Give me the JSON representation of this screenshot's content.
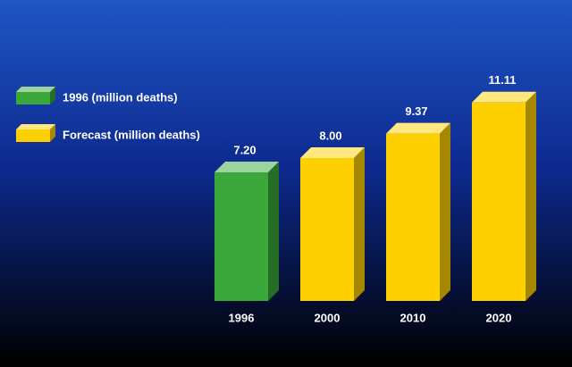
{
  "chart_data": {
    "type": "bar",
    "categories": [
      "1996",
      "2000",
      "2010",
      "2020"
    ],
    "series": [
      {
        "name": "1996 (million deaths)",
        "color": "#3aa83a",
        "values": [
          7.2,
          null,
          null,
          null
        ],
        "value_labels": [
          "7.20",
          null,
          null,
          null
        ]
      },
      {
        "name": "Forecast (million deaths)",
        "color": "#ffd000",
        "values": [
          null,
          8,
          9.37,
          11.11
        ],
        "value_labels": [
          null,
          "8.00",
          "9.37",
          "11.11"
        ]
      }
    ],
    "legend": "upper left"
  }
}
